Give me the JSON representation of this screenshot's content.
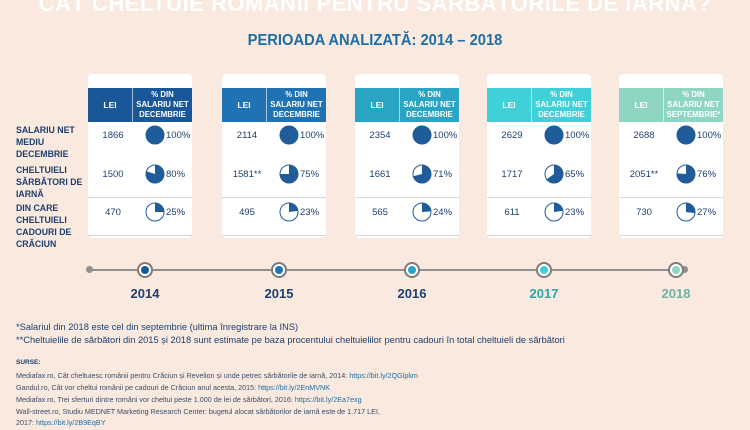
{
  "title": "CÂT CHELTUIE ROMÂNII PENTRU SĂRBĂTORILE DE IARNĂ?",
  "subtitle": "PERIOADA ANALIZATĂ: 2014 – 2018",
  "row_labels": [
    "SALARIU NET MEDIU DECEMBRIE",
    "CHELTUIELI SĂRBĂTORI DE IARNĂ",
    "DIN CARE CHELTUIELI CADOURI DE CRĂCIUN"
  ],
  "colors": {
    "c2014": "#1a5799",
    "c2015": "#1f73b4",
    "c2016": "#2aa4c4",
    "c2017": "#3fd0d8",
    "c2018": "#8fd5c4",
    "pie_fill": "#1f5c99"
  },
  "chart_data": {
    "type": "table",
    "years": [
      {
        "year": "2014",
        "lei_label": "LEI",
        "pct_label": "% DIN SALARIU NET DECEMBRIE",
        "rows": [
          {
            "lei": "1866",
            "pct": 100
          },
          {
            "lei": "1500",
            "pct": 80
          },
          {
            "lei": "470",
            "pct": 25
          }
        ]
      },
      {
        "year": "2015",
        "lei_label": "LEI",
        "pct_label": "% DIN SALARIU NET DECEMBRIE",
        "rows": [
          {
            "lei": "2114",
            "pct": 100
          },
          {
            "lei": "1581**",
            "pct": 75
          },
          {
            "lei": "495",
            "pct": 23
          }
        ]
      },
      {
        "year": "2016",
        "lei_label": "LEI",
        "pct_label": "% DIN SALARIU NET DECEMBRIE",
        "rows": [
          {
            "lei": "2354",
            "pct": 100
          },
          {
            "lei": "1661",
            "pct": 71
          },
          {
            "lei": "565",
            "pct": 24
          }
        ]
      },
      {
        "year": "2017",
        "lei_label": "LEI",
        "pct_label": "% DIN SALARIU NET DECEMBRIE",
        "rows": [
          {
            "lei": "2629",
            "pct": 100
          },
          {
            "lei": "1717",
            "pct": 65
          },
          {
            "lei": "611",
            "pct": 23
          }
        ]
      },
      {
        "year": "2018",
        "lei_label": "LEI",
        "pct_label": "% DIN SALARIU NET SEPTEMBRIE*",
        "rows": [
          {
            "lei": "2688",
            "pct": 100
          },
          {
            "lei": "2051**",
            "pct": 76
          },
          {
            "lei": "730",
            "pct": 27
          }
        ]
      }
    ]
  },
  "notes": [
    "*Salariul din 2018 este cel din septembrie (ultima înregistrare la INS)",
    "**Cheltuielile de sărbători din 2015 și 2018 sunt estimate pe baza procentului cheltuielilor pentru cadouri în total cheltuieli de sărbători"
  ],
  "sources_title": "SURSE:",
  "sources": [
    {
      "text": "Mediafax.ro, Cât cheltuiesc românii pentru Crăciun și Revelion și unde petrec sărbătorile de iarnă, 2014: ",
      "link": "https://bit.ly/2QGlpkm"
    },
    {
      "text": "Gandul.ro, Cât vor cheltui românii pe cadouri de Crăciun anul acesta, 2015: ",
      "link": "https://bit.ly/2EnMVNK"
    },
    {
      "text": "Mediafax.ro, Trei sferturi dintre români vor cheltui peste 1.000 de lei de sărbători, 2016: ",
      "link": "https://bit.ly/2Ea7exg"
    },
    {
      "text": "Wall-street.ro, Studiu MEDNET Marketing Research Center: bugetul alocat sărbătorilor de iarnă este de 1.717 LEI,",
      "link": ""
    },
    {
      "text": "2017: ",
      "link": "https://bit.ly/2B9EqBY"
    }
  ]
}
